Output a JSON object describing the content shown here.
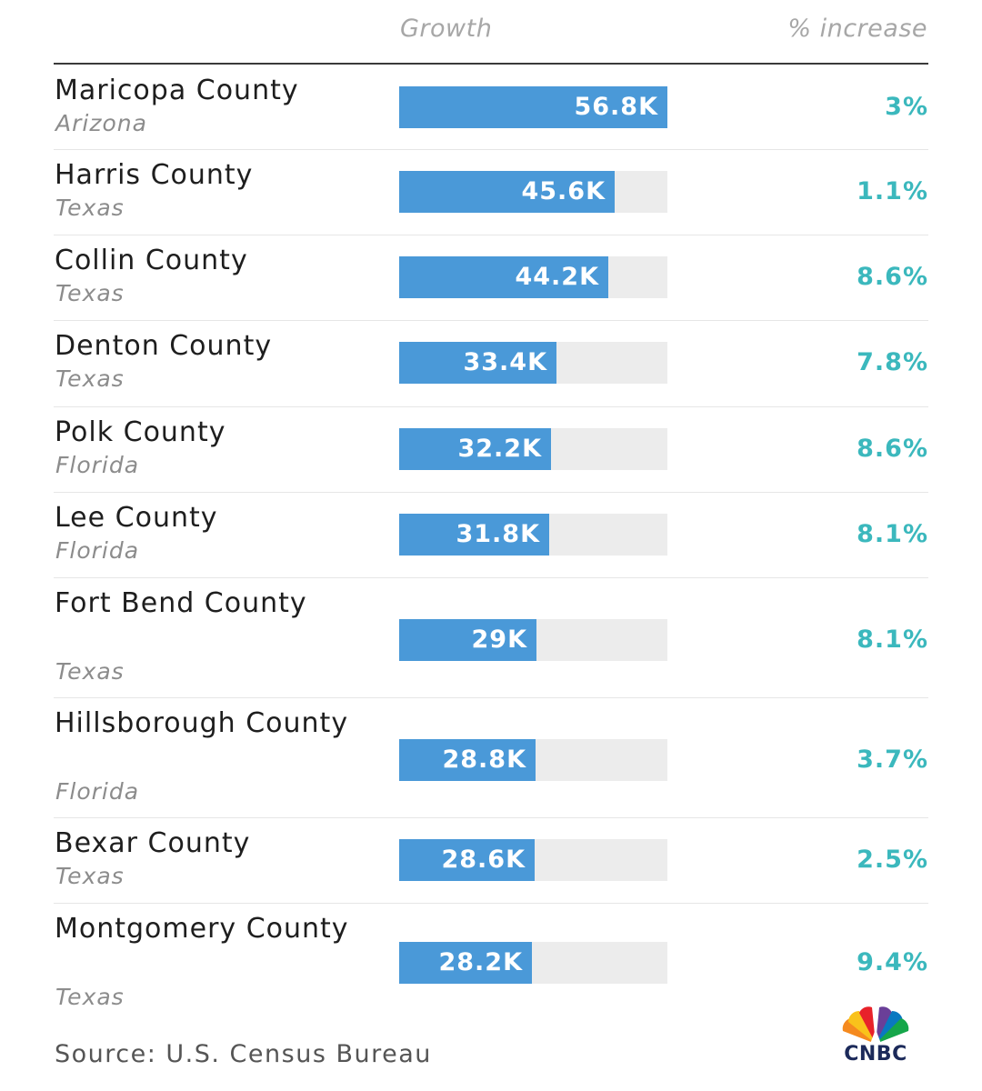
{
  "header": {
    "growth_label": "Growth",
    "pct_label": "% increase"
  },
  "colors": {
    "bar": "#4a99d8",
    "track": "#ececec",
    "pct": "#3bb8bd"
  },
  "chart_data": {
    "type": "bar",
    "orientation": "horizontal",
    "xlim": [
      0,
      56.8
    ],
    "rows": [
      {
        "county": "Maricopa County",
        "state": "Arizona",
        "growth": 56.8,
        "growth_label": "56.8K",
        "pct": "3%"
      },
      {
        "county": "Harris County",
        "state": "Texas",
        "growth": 45.6,
        "growth_label": "45.6K",
        "pct": "1.1%"
      },
      {
        "county": "Collin County",
        "state": "Texas",
        "growth": 44.2,
        "growth_label": "44.2K",
        "pct": "8.6%"
      },
      {
        "county": "Denton County",
        "state": "Texas",
        "growth": 33.4,
        "growth_label": "33.4K",
        "pct": "7.8%"
      },
      {
        "county": "Polk County",
        "state": "Florida",
        "growth": 32.2,
        "growth_label": "32.2K",
        "pct": "8.6%"
      },
      {
        "county": "Lee County",
        "state": "Florida",
        "growth": 31.8,
        "growth_label": "31.8K",
        "pct": "8.1%"
      },
      {
        "county": "Fort Bend County",
        "state": "Texas",
        "growth": 29.0,
        "growth_label": "29K",
        "pct": "8.1%"
      },
      {
        "county": "Hillsborough County",
        "state": "Florida",
        "growth": 28.8,
        "growth_label": "28.8K",
        "pct": "3.7%"
      },
      {
        "county": "Bexar County",
        "state": "Texas",
        "growth": 28.6,
        "growth_label": "28.6K",
        "pct": "2.5%"
      },
      {
        "county": "Montgomery County",
        "state": "Texas",
        "growth": 28.2,
        "growth_label": "28.2K",
        "pct": "9.4%"
      }
    ]
  },
  "footer": {
    "source": "Source: U.S. Census Bureau",
    "logo_text": "CNBC",
    "logo_icon": "peacock-icon"
  }
}
